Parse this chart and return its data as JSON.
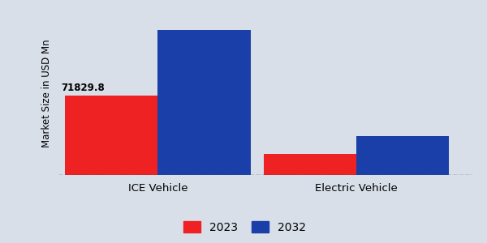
{
  "categories": [
    "ICE Vehicle",
    "Electric Vehicle"
  ],
  "values_2023": [
    71829.8,
    19000
  ],
  "values_2032": [
    132000,
    35000
  ],
  "color_2023": "#ee2222",
  "color_2032": "#1a3fa8",
  "ylabel": "Market Size in USD Mn",
  "label_2023": "2023",
  "label_2032": "2032",
  "annotation_ice_2023": "71829.8",
  "background_color": "#d8dfe9",
  "bar_width": 0.28,
  "ylim": [
    0,
    148000
  ],
  "figsize": [
    6.0,
    3.0
  ],
  "dpi": 100,
  "x_positions": [
    0.25,
    0.85
  ]
}
